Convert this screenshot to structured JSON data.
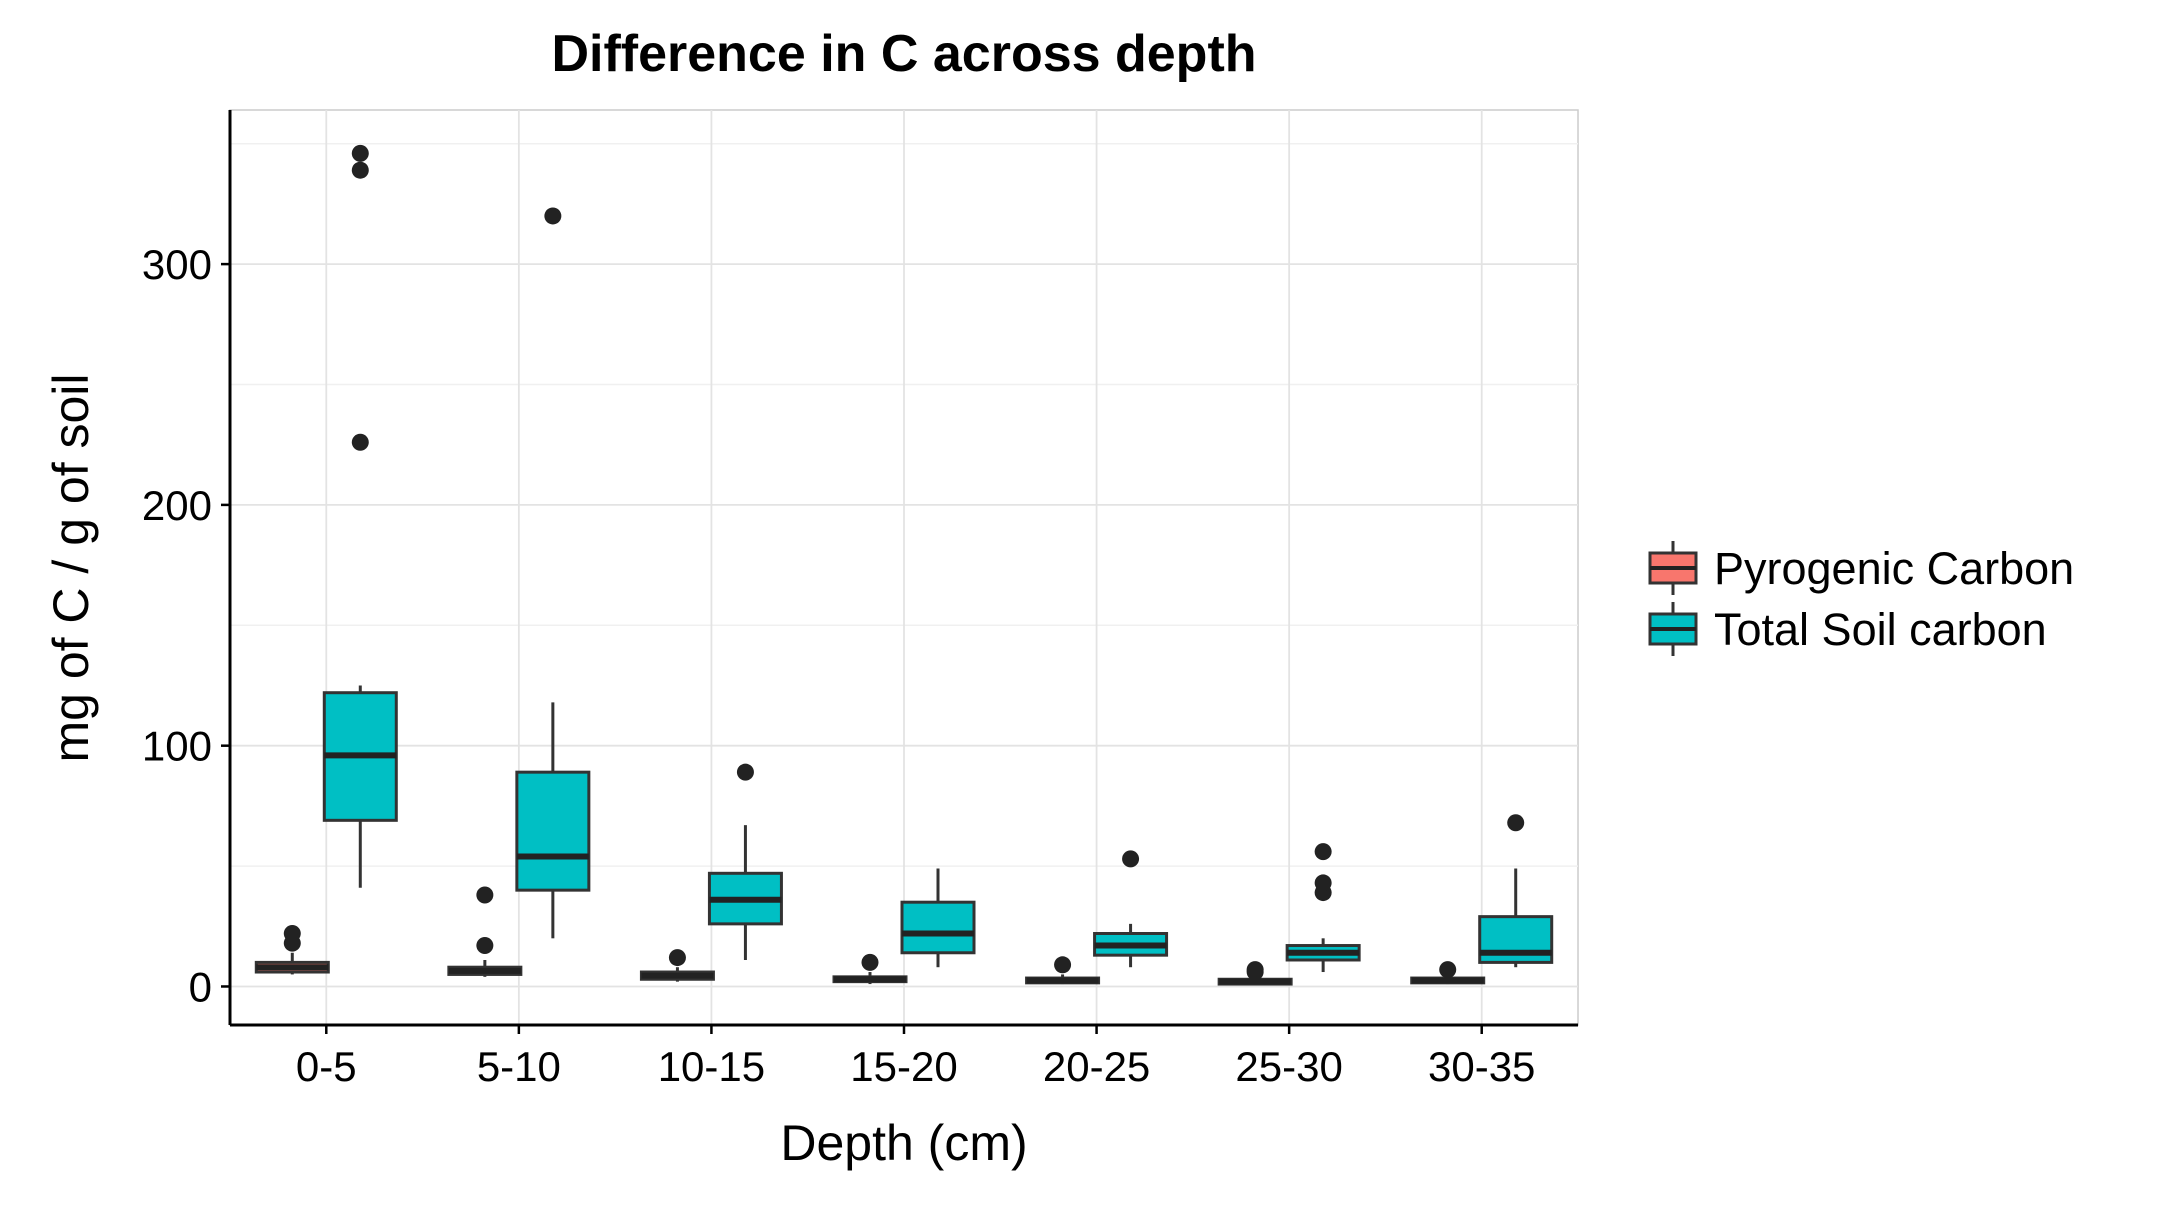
{
  "chart_data": {
    "type": "box",
    "title": "Difference in C across depth",
    "xlabel": "Depth (cm)",
    "ylabel": "mg of C / g of soil",
    "categories": [
      "0-5",
      "5-10",
      "10-15",
      "15-20",
      "20-25",
      "25-30",
      "30-35"
    ],
    "ylim": [
      -16,
      364
    ],
    "yticks": [
      0,
      100,
      200,
      300
    ],
    "grid": true,
    "legend_position": "right",
    "series": [
      {
        "name": "Pyrogenic Carbon",
        "color": "#F8766D",
        "boxes": [
          {
            "q1": 6,
            "median": 8,
            "q3": 10,
            "whisker_low": 5,
            "whisker_high": 14,
            "outliers": [
              18,
              22
            ]
          },
          {
            "q1": 5,
            "median": 6.5,
            "q3": 8,
            "whisker_low": 4,
            "whisker_high": 11,
            "outliers": [
              17,
              38
            ]
          },
          {
            "q1": 3,
            "median": 4.5,
            "q3": 6,
            "whisker_low": 2,
            "whisker_high": 8,
            "outliers": [
              12
            ]
          },
          {
            "q1": 2,
            "median": 3,
            "q3": 4,
            "whisker_low": 1,
            "whisker_high": 6,
            "outliers": [
              10
            ]
          },
          {
            "q1": 1.5,
            "median": 2.5,
            "q3": 3.5,
            "whisker_low": 1,
            "whisker_high": 5,
            "outliers": [
              9
            ]
          },
          {
            "q1": 1,
            "median": 2,
            "q3": 3,
            "whisker_low": 0.5,
            "whisker_high": 4,
            "outliers": [
              6,
              7
            ]
          },
          {
            "q1": 1.5,
            "median": 2.5,
            "q3": 3.5,
            "whisker_low": 1,
            "whisker_high": 5,
            "outliers": [
              7
            ]
          }
        ]
      },
      {
        "name": "Total Soil carbon",
        "color": "#00BFC4",
        "boxes": [
          {
            "q1": 69,
            "median": 96,
            "q3": 122,
            "whisker_low": 41,
            "whisker_high": 125,
            "outliers": [
              226,
              339,
              346
            ]
          },
          {
            "q1": 40,
            "median": 54,
            "q3": 89,
            "whisker_low": 20,
            "whisker_high": 118,
            "outliers": [
              320
            ]
          },
          {
            "q1": 26,
            "median": 36,
            "q3": 47,
            "whisker_low": 11,
            "whisker_high": 67,
            "outliers": [
              89
            ]
          },
          {
            "q1": 14,
            "median": 22,
            "q3": 35,
            "whisker_low": 8,
            "whisker_high": 49,
            "outliers": []
          },
          {
            "q1": 13,
            "median": 17,
            "q3": 22,
            "whisker_low": 8,
            "whisker_high": 26,
            "outliers": [
              53
            ]
          },
          {
            "q1": 11,
            "median": 14,
            "q3": 17,
            "whisker_low": 6,
            "whisker_high": 20,
            "outliers": [
              39,
              43,
              56
            ]
          },
          {
            "q1": 10,
            "median": 14,
            "q3": 29,
            "whisker_low": 8,
            "whisker_high": 49,
            "outliers": [
              68
            ]
          }
        ]
      }
    ]
  }
}
